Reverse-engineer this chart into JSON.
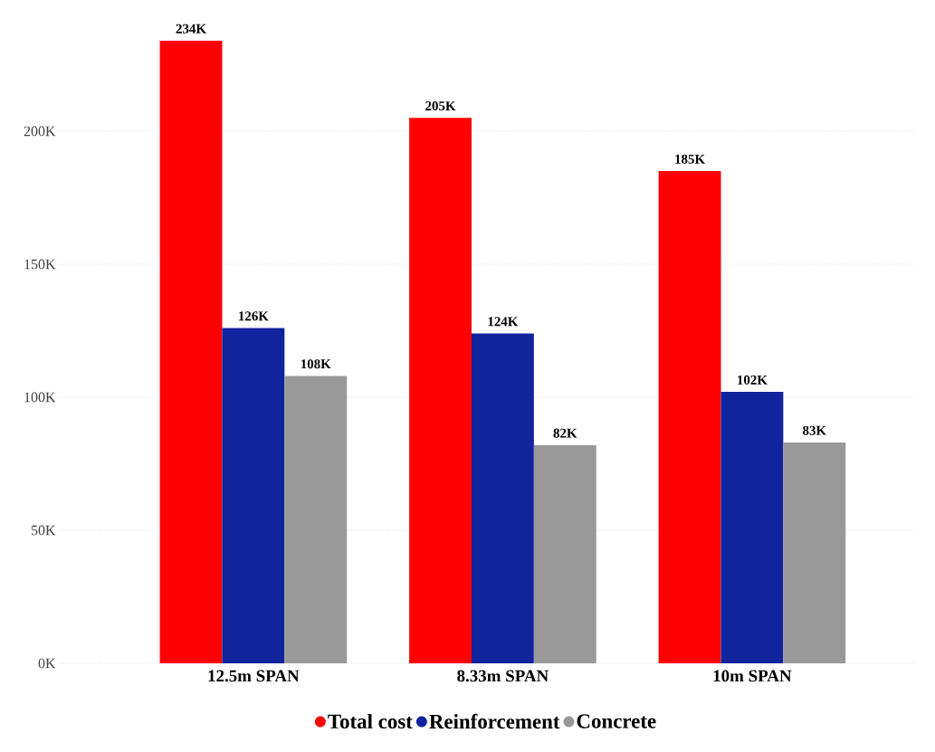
{
  "chart_data": {
    "type": "bar",
    "categories": [
      "12.5m SPAN",
      "8.33m SPAN",
      "10m SPAN"
    ],
    "series": [
      {
        "name": "Total cost",
        "color": "#ff0000",
        "values": [
          234000,
          205000,
          185000
        ],
        "value_labels": [
          "234K",
          "205K",
          "185K"
        ]
      },
      {
        "name": "Reinforcement",
        "color": "#12239e",
        "values": [
          126000,
          124000,
          102000
        ],
        "value_labels": [
          "126K",
          "124K",
          "102K"
        ]
      },
      {
        "name": "Concrete",
        "color": "#999999",
        "values": [
          108000,
          82000,
          83000
        ],
        "value_labels": [
          "108K",
          "82K",
          "83K"
        ]
      }
    ],
    "ylim": [
      0,
      234000
    ],
    "yticks": [
      {
        "value": 0,
        "label": "0K"
      },
      {
        "value": 50000,
        "label": "50K"
      },
      {
        "value": 100000,
        "label": "100K"
      },
      {
        "value": 150000,
        "label": "150K"
      },
      {
        "value": 200000,
        "label": "200K"
      }
    ],
    "grid": "y",
    "legend": "bottom",
    "marker": "circle"
  }
}
